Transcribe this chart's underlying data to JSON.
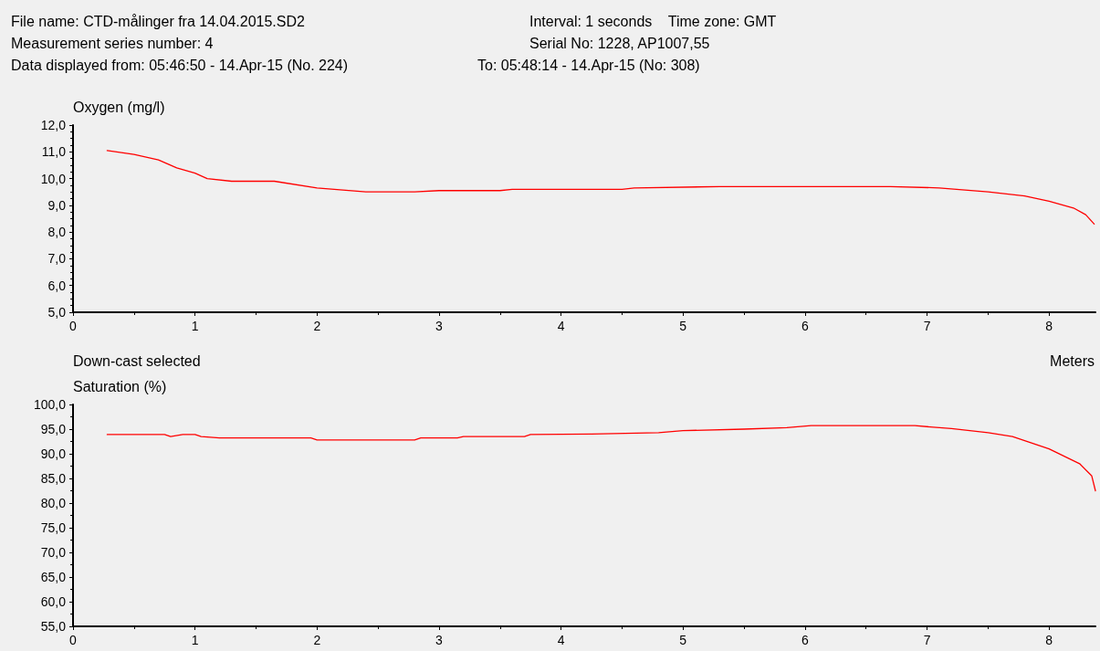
{
  "chart_data": [
    {
      "type": "line",
      "ylabel": "Oxygen (mg/l)",
      "annotations": [
        "File name: CTD-målinger fra 14.04.2015.SD2",
        "Interval: 1 seconds    Time zone: GMT",
        "Measurement series number: 4",
        "Serial No: 1228, AP1007,55",
        "Data displayed from: 05:46:50 - 14.Apr-15 (No. 224)",
        "To: 05:48:14 - 14.Apr-15 (No: 308)"
      ],
      "x": [
        0.28,
        0.5,
        0.7,
        0.85,
        1.0,
        1.1,
        1.3,
        1.65,
        2.0,
        2.4,
        2.8,
        3.0,
        3.5,
        3.6,
        4.5,
        4.6,
        5.3,
        6.7,
        7.1,
        7.5,
        7.8,
        8.0,
        8.2,
        8.3,
        8.37
      ],
      "series": [
        {
          "color": "#ff0000",
          "values": [
            11.05,
            10.9,
            10.7,
            10.4,
            10.2,
            10.0,
            9.9,
            9.9,
            9.65,
            9.5,
            9.5,
            9.55,
            9.55,
            9.6,
            9.6,
            9.65,
            9.7,
            9.7,
            9.65,
            9.5,
            9.35,
            9.15,
            8.9,
            8.65,
            8.3
          ]
        }
      ],
      "xlim": [
        0,
        8.38
      ],
      "xticks": [
        0,
        1,
        2,
        3,
        4,
        5,
        6,
        7,
        8
      ],
      "ylim": [
        5,
        12
      ],
      "yticks": [
        {
          "value": 5,
          "label": "5,0"
        },
        {
          "value": 6,
          "label": "6,0"
        },
        {
          "value": 7,
          "label": "7,0"
        },
        {
          "value": 8,
          "label": "8,0"
        },
        {
          "value": 9,
          "label": "9,0"
        },
        {
          "value": 10,
          "label": "10,0"
        },
        {
          "value": 11,
          "label": "11,0"
        },
        {
          "value": 12,
          "label": "12,0"
        }
      ],
      "grid": false,
      "marker": "none",
      "line_style": "solid"
    },
    {
      "type": "line",
      "ylabel": "Saturation (%)",
      "xlabel": "Meters",
      "annotations": [
        "Down-cast selected"
      ],
      "x": [
        0.28,
        0.75,
        0.8,
        0.9,
        1.0,
        1.05,
        1.2,
        1.95,
        2.0,
        2.8,
        2.85,
        3.15,
        3.2,
        3.7,
        3.75,
        4.25,
        4.8,
        5.0,
        5.5,
        5.85,
        6.05,
        6.9,
        7.2,
        7.5,
        7.7,
        8.0,
        8.25,
        8.35,
        8.38
      ],
      "series": [
        {
          "color": "#ff0000",
          "values": [
            93.9,
            93.9,
            93.5,
            93.9,
            93.9,
            93.5,
            93.2,
            93.2,
            92.8,
            92.8,
            93.2,
            93.2,
            93.5,
            93.5,
            93.9,
            94.0,
            94.3,
            94.7,
            95.0,
            95.3,
            95.7,
            95.7,
            95.1,
            94.3,
            93.5,
            91.0,
            88.0,
            85.5,
            82.5
          ]
        }
      ],
      "xlim": [
        0,
        8.38
      ],
      "xticks": [
        0,
        1,
        2,
        3,
        4,
        5,
        6,
        7,
        8
      ],
      "ylim": [
        55,
        100
      ],
      "yticks": [
        {
          "value": 55,
          "label": "55,0"
        },
        {
          "value": 60,
          "label": "60,0"
        },
        {
          "value": 65,
          "label": "65,0"
        },
        {
          "value": 70,
          "label": "70,0"
        },
        {
          "value": 75,
          "label": "75,0"
        },
        {
          "value": 80,
          "label": "80,0"
        },
        {
          "value": 85,
          "label": "85,0"
        },
        {
          "value": 90,
          "label": "90,0"
        },
        {
          "value": 95,
          "label": "95,0"
        },
        {
          "value": 100,
          "label": "100,0"
        }
      ],
      "grid": false,
      "marker": "none",
      "line_style": "solid"
    }
  ]
}
